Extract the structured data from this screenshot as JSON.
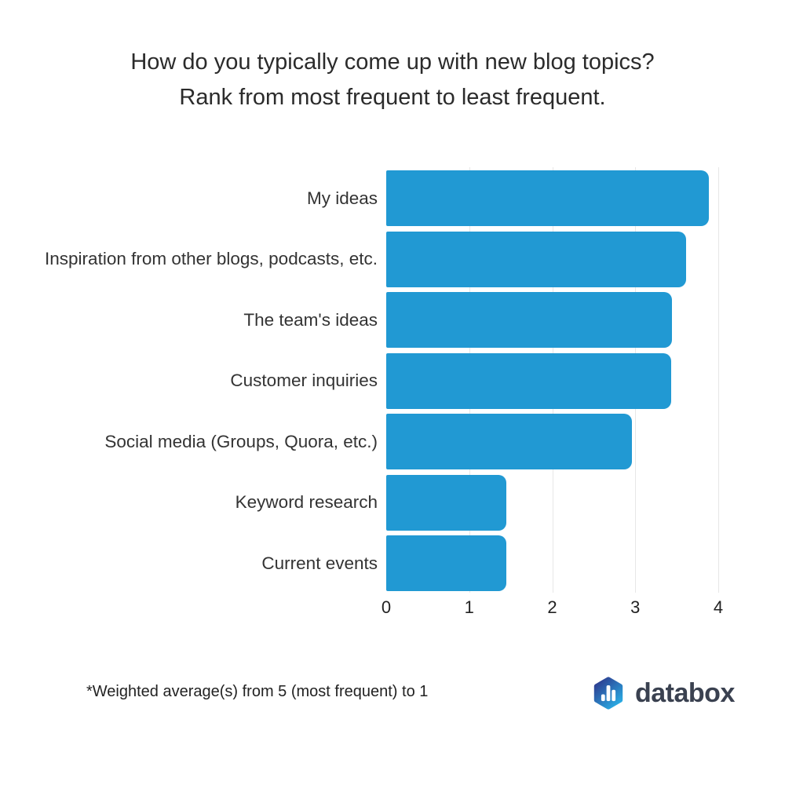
{
  "title": {
    "line1": "How do you typically come up with new blog topics?",
    "line2": "Rank from most frequent to least frequent."
  },
  "footnote": {
    "text": "*Weighted average(s) from 5 (most frequent) to 1"
  },
  "brand": {
    "name": "databox",
    "logo_icon": "databox-hexagon-bar-chart-icon",
    "logo_gradient_start": "#2e3d90",
    "logo_gradient_end": "#29ace4",
    "wordmark_color": "#3a4150"
  },
  "colors": {
    "bar": "#2199d3",
    "gridline": "#e7e7e7",
    "title_text": "#2b2b2b",
    "label_text": "#333333"
  },
  "chart_data": {
    "type": "bar",
    "orientation": "horizontal",
    "title": "How do you typically come up with new blog topics? Rank from most frequent to least frequent.",
    "categories": [
      "My ideas",
      "Inspiration from other blogs, podcasts, etc.",
      "The team's ideas",
      "Customer inquiries",
      "Social media (Groups, Quora, etc.)",
      "Keyword research",
      "Current events"
    ],
    "values": [
      3.89,
      3.61,
      3.44,
      3.43,
      2.96,
      1.45,
      1.45
    ],
    "xlabel": "",
    "ylabel": "",
    "xlim": [
      0,
      4
    ],
    "xticks": [
      0,
      1,
      2,
      3,
      4
    ],
    "grid": "vertical-only",
    "legend": false,
    "note": "*Weighted average(s) from 5 (most frequent) to 1"
  }
}
